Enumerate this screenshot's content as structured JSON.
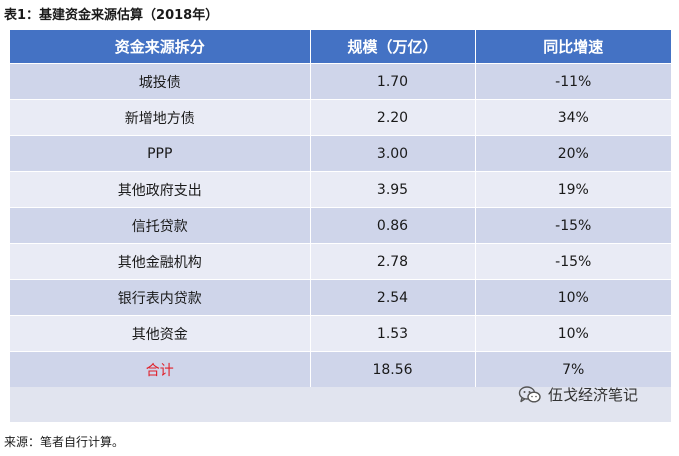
{
  "title": "表1：基建资金来源估算（2018年）",
  "table": {
    "headers": [
      "资金来源拆分",
      "规模（万亿）",
      "同比增速"
    ],
    "rows": [
      {
        "name": "城投债",
        "scale": "1.70",
        "growth": "-11%"
      },
      {
        "name": "新增地方债",
        "scale": "2.20",
        "growth": "34%"
      },
      {
        "name": "PPP",
        "scale": "3.00",
        "growth": "20%"
      },
      {
        "name": "其他政府支出",
        "scale": "3.95",
        "growth": "19%"
      },
      {
        "name": "信托贷款",
        "scale": "0.86",
        "growth": "-15%"
      },
      {
        "name": "其他金融机构",
        "scale": "2.78",
        "growth": "-15%"
      },
      {
        "name": "银行表内贷款",
        "scale": "2.54",
        "growth": "10%"
      },
      {
        "name": "其他资金",
        "scale": "1.53",
        "growth": "10%"
      },
      {
        "name": "合计",
        "scale": "18.56",
        "growth": "7%"
      }
    ]
  },
  "watermark": {
    "icon": "wechat-icon",
    "text": "伍戈经济笔记"
  },
  "source": "来源：笔者自行计算。",
  "colors": {
    "header_bg": "#4472c4",
    "row_dark": "#cfd5ea",
    "row_light": "#e9ebf5",
    "total_label": "#e0202a"
  }
}
